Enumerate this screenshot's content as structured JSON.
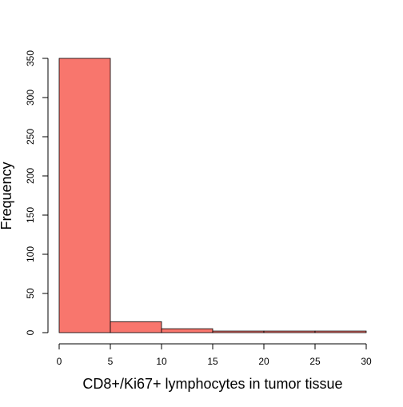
{
  "chart_data": {
    "type": "bar",
    "title": "",
    "xlabel": "CD8+/Ki67+ lymphocytes in tumor tissue",
    "ylabel": "Frequency",
    "bins": [
      {
        "from": 0,
        "to": 5,
        "count": 350
      },
      {
        "from": 5,
        "to": 10,
        "count": 14
      },
      {
        "from": 10,
        "to": 15,
        "count": 5
      },
      {
        "from": 15,
        "to": 20,
        "count": 2
      },
      {
        "from": 20,
        "to": 25,
        "count": 2
      },
      {
        "from": 25,
        "to": 30,
        "count": 2
      }
    ],
    "xlim": [
      0,
      30
    ],
    "ylim": [
      0,
      350
    ],
    "xticks": [
      0,
      5,
      10,
      15,
      20,
      25,
      30
    ],
    "yticks": [
      0,
      50,
      100,
      150,
      200,
      250,
      300,
      350
    ],
    "bar_color": "#F8766D",
    "bar_edge_color": "#000000",
    "grid": false,
    "legend": "none"
  }
}
